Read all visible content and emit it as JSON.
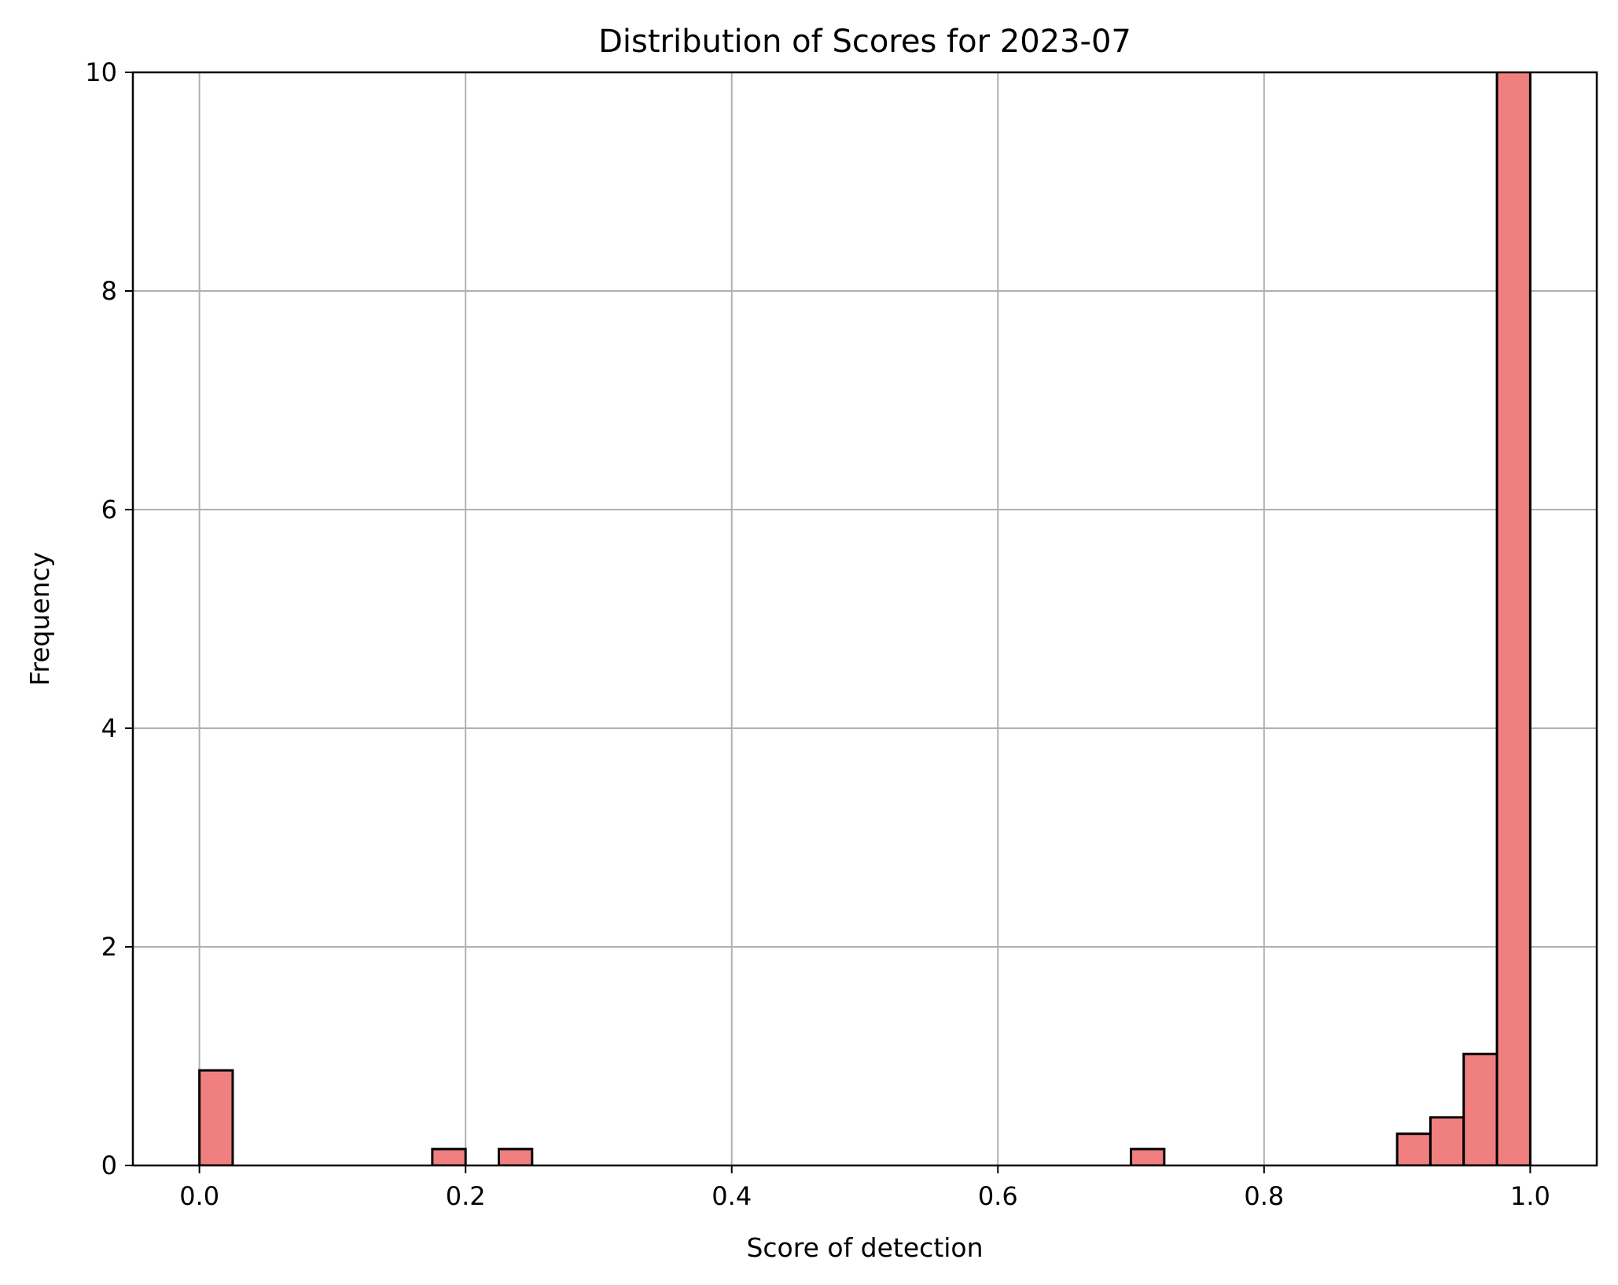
{
  "chart_data": {
    "type": "bar",
    "title": "Distribution of Scores for 2023-07",
    "xlabel": "Score of detection",
    "ylabel": "Frequency",
    "xlim": [
      -0.05,
      1.05
    ],
    "ylim": [
      0,
      10
    ],
    "xticks": [
      0.0,
      0.2,
      0.4,
      0.6,
      0.8,
      1.0
    ],
    "xtick_labels": [
      "0.0",
      "0.2",
      "0.4",
      "0.6",
      "0.8",
      "1.0"
    ],
    "yticks": [
      0,
      2,
      4,
      6,
      8,
      10
    ],
    "ytick_labels": [
      "0",
      "2",
      "4",
      "6",
      "8",
      "10"
    ],
    "grid": true,
    "bar_color": "#f08080",
    "edge_color": "#000000",
    "bins": [
      {
        "x0": 0.0,
        "x1": 0.025,
        "value": 0.87
      },
      {
        "x0": 0.175,
        "x1": 0.2,
        "value": 0.15
      },
      {
        "x0": 0.225,
        "x1": 0.25,
        "value": 0.15
      },
      {
        "x0": 0.7,
        "x1": 0.725,
        "value": 0.15
      },
      {
        "x0": 0.9,
        "x1": 0.925,
        "value": 0.29
      },
      {
        "x0": 0.925,
        "x1": 0.95,
        "value": 0.44
      },
      {
        "x0": 0.95,
        "x1": 0.975,
        "value": 1.02
      },
      {
        "x0": 0.975,
        "x1": 1.0,
        "value": 10.5
      }
    ]
  }
}
